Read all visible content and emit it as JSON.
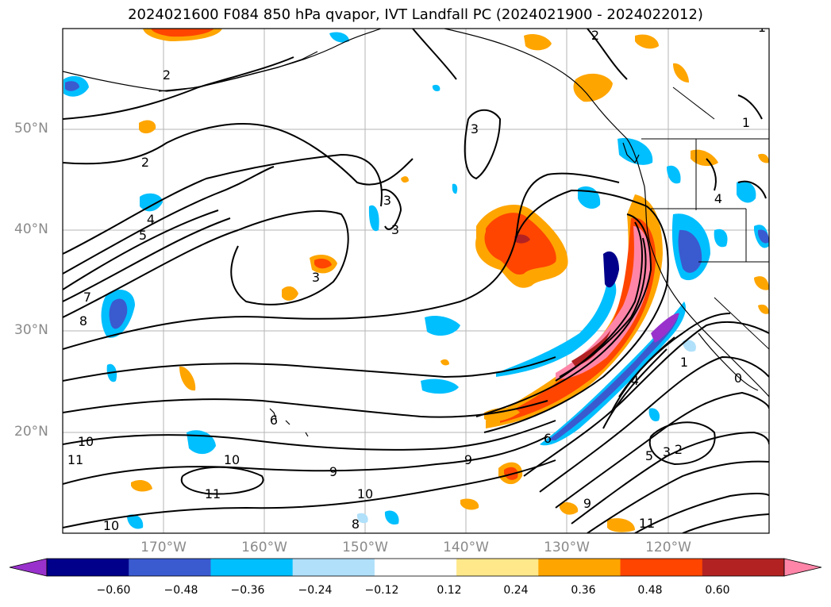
{
  "title": "2024021600 F084 850 hPa qvapor, IVT Landfall PC (2024021900 - 2024022012)",
  "map": {
    "lat_labels": [
      "50°N",
      "40°N",
      "30°N",
      "20°N"
    ],
    "lon_labels": [
      "170°W",
      "160°W",
      "150°W",
      "140°W",
      "130°W",
      "120°W"
    ],
    "extent": {
      "lon_min": -180,
      "lon_max": -110,
      "lat_min": 10,
      "lat_max": 60
    },
    "grid": true,
    "contour_labels": [
      "2",
      "2",
      "2",
      "1",
      "1",
      "3",
      "3",
      "3",
      "3",
      "4",
      "4",
      "5",
      "7",
      "8",
      "6",
      "6",
      "9",
      "9",
      "9",
      "10",
      "10",
      "10",
      "10",
      "11",
      "11",
      "11",
      "2",
      "3",
      "5",
      "4",
      "1",
      "0",
      "8"
    ]
  },
  "colorbar": {
    "ticks": [
      "−0.60",
      "−0.48",
      "−0.36",
      "−0.24",
      "−0.12",
      "0.12",
      "0.24",
      "0.36",
      "0.48",
      "0.60"
    ],
    "colors": [
      "#9932cc",
      "#00008b",
      "#3a5ad0",
      "#00bfff",
      "#b0e0fa",
      "#ffffff",
      "#ffe88a",
      "#ffa500",
      "#ff4500",
      "#b22222",
      "#ff85a8"
    ],
    "extend": "both"
  }
}
